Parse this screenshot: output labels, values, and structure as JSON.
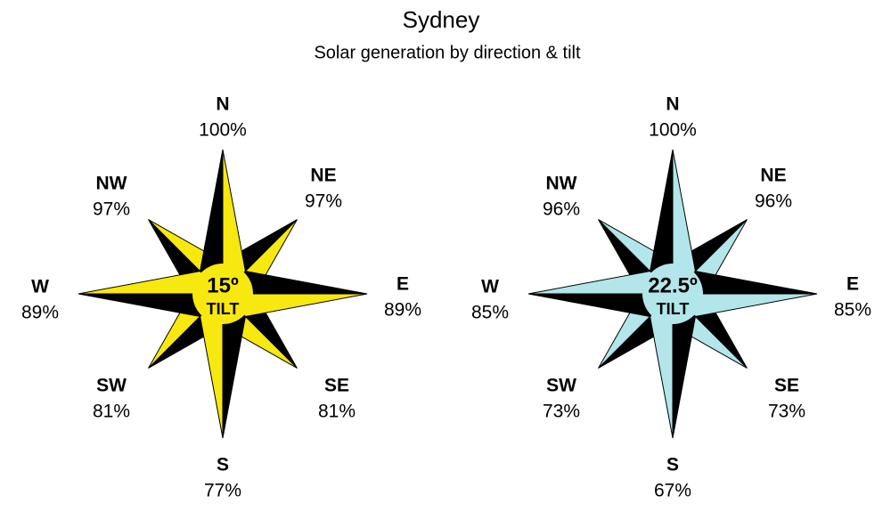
{
  "title": "Sydney",
  "subtitle": "Solar generation by direction & tilt",
  "roses": [
    {
      "tilt": "15º",
      "tilt_label": "TILT",
      "color": "#f7e80f",
      "directions": [
        {
          "label": "N",
          "value": "100%"
        },
        {
          "label": "NE",
          "value": "97%"
        },
        {
          "label": "E",
          "value": "89%"
        },
        {
          "label": "SE",
          "value": "81%"
        },
        {
          "label": "S",
          "value": "77%"
        },
        {
          "label": "SW",
          "value": "81%"
        },
        {
          "label": "W",
          "value": "89%"
        },
        {
          "label": "NW",
          "value": "97%"
        }
      ]
    },
    {
      "tilt": "22.5º",
      "tilt_label": "TILT",
      "color": "#b2e6ea",
      "directions": [
        {
          "label": "N",
          "value": "100%"
        },
        {
          "label": "NE",
          "value": "96%"
        },
        {
          "label": "E",
          "value": "85%"
        },
        {
          "label": "SE",
          "value": "73%"
        },
        {
          "label": "S",
          "value": "67%"
        },
        {
          "label": "SW",
          "value": "73%"
        },
        {
          "label": "W",
          "value": "85%"
        },
        {
          "label": "NW",
          "value": "96%"
        }
      ]
    }
  ]
}
